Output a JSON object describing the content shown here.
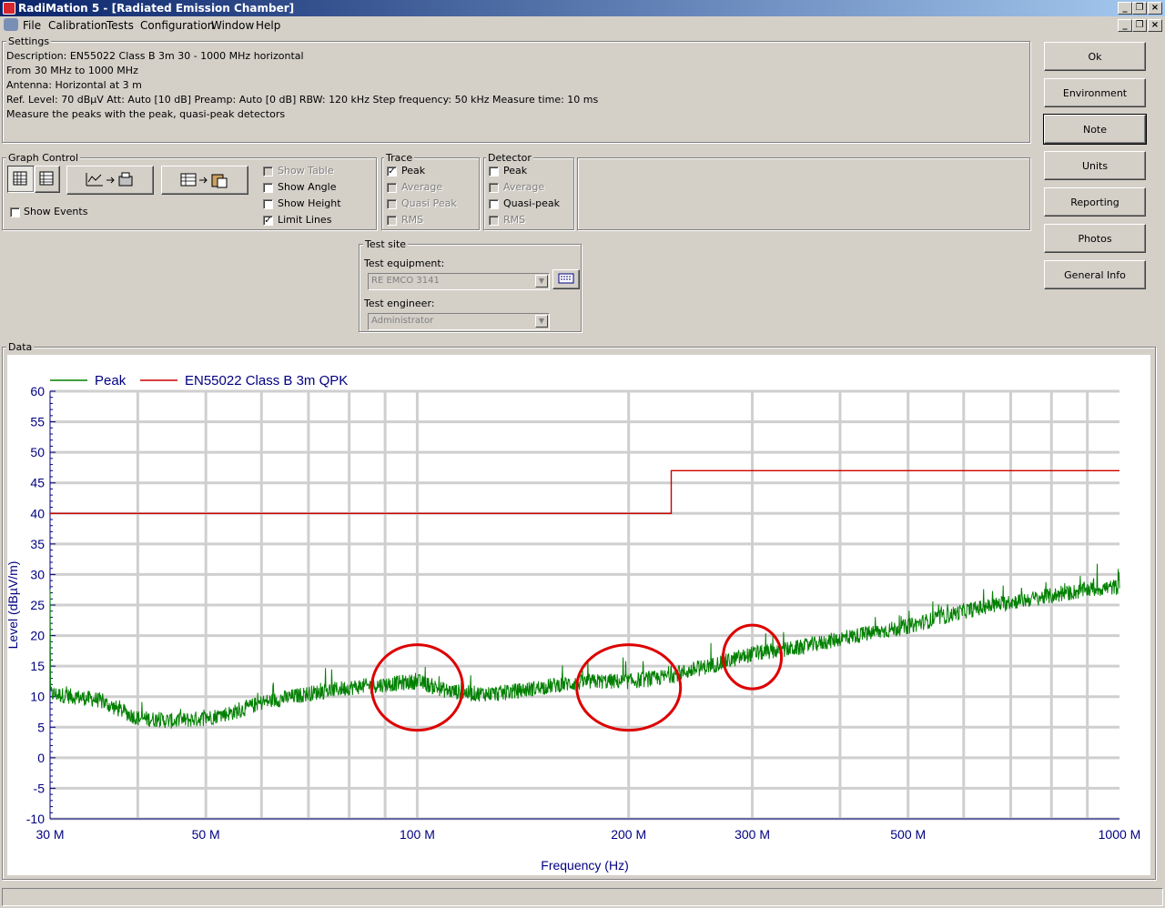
{
  "window": {
    "title": "RadiMation 5 - [Radiated Emission Chamber]"
  },
  "menu": [
    "File",
    "Calibration",
    "Tests",
    "Configuration",
    "Window",
    "Help"
  ],
  "settings": {
    "label": "Settings",
    "description": "Description: EN55022 Class B 3m  30 - 1000 MHz horizontal",
    "range": "From 30 MHz to 1000 MHz",
    "antenna": "Antenna: Horizontal at 3 m",
    "ref": "Ref. Level: 70 dBµV Att: Auto [10 dB] Preamp: Auto [0 dB] RBW: 120 kHz Step frequency: 50 kHz Measure time: 10 ms",
    "measure": "Measure the peaks with the peak, quasi-peak detectors"
  },
  "side_buttons": {
    "ok": "Ok",
    "environment": "Environment",
    "note": "Note",
    "units": "Units",
    "reporting": "Reporting",
    "photos": "Photos",
    "general_info": "General Info"
  },
  "graph_control": {
    "label": "Graph Control",
    "show_events": "Show Events",
    "show_table": "Show Table",
    "show_angle": "Show Angle",
    "show_height": "Show Height",
    "limit_lines": "Limit Lines"
  },
  "trace": {
    "label": "Trace",
    "peak": "Peak",
    "average": "Average",
    "quasi_peak": "Quasi Peak",
    "rms": "RMS"
  },
  "detector": {
    "label": "Detector",
    "peak": "Peak",
    "average": "Average",
    "quasi_peak": "Quasi-peak",
    "rms": "RMS"
  },
  "test_site": {
    "label": "Test site",
    "equipment_label": "Test equipment:",
    "equipment_value": "RE EMCO 3141",
    "engineer_label": "Test engineer:",
    "engineer_value": "Administrator"
  },
  "data_label": "Data",
  "colors": {
    "peak": "#008000",
    "limit": "#cc0000",
    "axis_text": "#000080",
    "highlight": "#dd0000"
  },
  "chart_data": {
    "type": "line",
    "xlabel": "Frequency (Hz)",
    "ylabel": "Level (dBµV/m)",
    "x_scale": "log",
    "xlim": [
      30,
      1000
    ],
    "ylim": [
      -10,
      60
    ],
    "grid": true,
    "legend_position": "top-left",
    "x_ticks": [
      "30 M",
      "50 M",
      "100 M",
      "200 M",
      "300 M",
      "500 M",
      "1000 M"
    ],
    "y_ticks": [
      "60",
      "55",
      "50",
      "45",
      "40",
      "35",
      "30",
      "25",
      "20",
      "15",
      "10",
      "5",
      "0",
      "-5",
      "-10"
    ],
    "series": [
      {
        "name": "Peak",
        "x_mhz": [
          30,
          35,
          40,
          45,
          50,
          55,
          60,
          70,
          80,
          90,
          100,
          110,
          120,
          130,
          140,
          160,
          180,
          200,
          220,
          250,
          280,
          300,
          350,
          400,
          500,
          600,
          700,
          800,
          900,
          1000
        ],
        "y": [
          10.5,
          9.5,
          6.5,
          6,
          6.5,
          7.5,
          9,
          10.5,
          11.5,
          12,
          12.5,
          11,
          10.5,
          10.5,
          11,
          12,
          12.5,
          12.5,
          13,
          14.5,
          16,
          17,
          18,
          19.5,
          21.5,
          24,
          25.5,
          26.5,
          27.5,
          28
        ]
      },
      {
        "name": "EN55022 Class B 3m QPK",
        "x_mhz": [
          30,
          230,
          230,
          1000
        ],
        "y": [
          40,
          40,
          47,
          47
        ]
      }
    ],
    "annotations": [
      {
        "type": "circle",
        "x_mhz": 100,
        "y": 11.5
      },
      {
        "type": "circle",
        "x_mhz": 200,
        "y": 11.5
      },
      {
        "type": "circle",
        "x_mhz": 300,
        "y": 16.5
      }
    ]
  }
}
